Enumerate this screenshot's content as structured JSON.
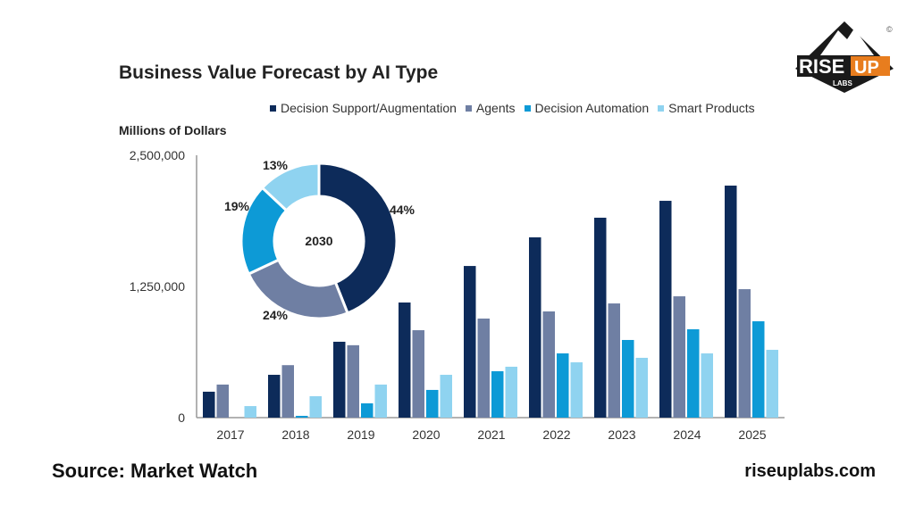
{
  "title": "Business Value Forecast by AI Type",
  "source": "Source: Market Watch",
  "site": "riseuplabs.com",
  "logo": {
    "text": "RISE UP",
    "sub": "LABS",
    "mark": "©"
  },
  "chart_data": {
    "type": "bar",
    "title": "Business Value Forecast by AI Type",
    "ylabel": "Millions of Dollars",
    "xlabel": "",
    "ylim": [
      0,
      2500000
    ],
    "yticks": [
      0,
      1250000,
      2500000
    ],
    "ytick_labels": [
      "0",
      "1,250,000",
      "2,500,000"
    ],
    "legend_position": "top",
    "grid": false,
    "categories": [
      "2017",
      "2018",
      "2019",
      "2020",
      "2021",
      "2022",
      "2023",
      "2024",
      "2025"
    ],
    "series": [
      {
        "name": "Decision Support/Augmentation",
        "color": "#0d2b5a",
        "values": [
          247000,
          408000,
          723000,
          1097000,
          1445000,
          1718000,
          1905000,
          2066000,
          2211000
        ]
      },
      {
        "name": "Agents",
        "color": "#6f7fa3",
        "values": [
          315000,
          500000,
          690000,
          833000,
          944000,
          1012000,
          1088000,
          1156000,
          1224000
        ]
      },
      {
        "name": "Decision Automation",
        "color": "#0d9ad6",
        "values": [
          0,
          17000,
          136000,
          264000,
          442000,
          612000,
          740000,
          842000,
          918000
        ]
      },
      {
        "name": "Smart Products",
        "color": "#8fd3f0",
        "values": [
          110000,
          204000,
          315000,
          408000,
          485000,
          527000,
          570000,
          612000,
          646000
        ]
      }
    ],
    "inset": {
      "type": "pie",
      "center_label": "2030",
      "slices": [
        {
          "name": "Decision Support/Augmentation",
          "value": 44,
          "label": "44%"
        },
        {
          "name": "Agents",
          "value": 24,
          "label": "24%"
        },
        {
          "name": "Decision Automation",
          "value": 19,
          "label": "19%"
        },
        {
          "name": "Smart Products",
          "value": 13,
          "label": "13%"
        }
      ]
    }
  }
}
